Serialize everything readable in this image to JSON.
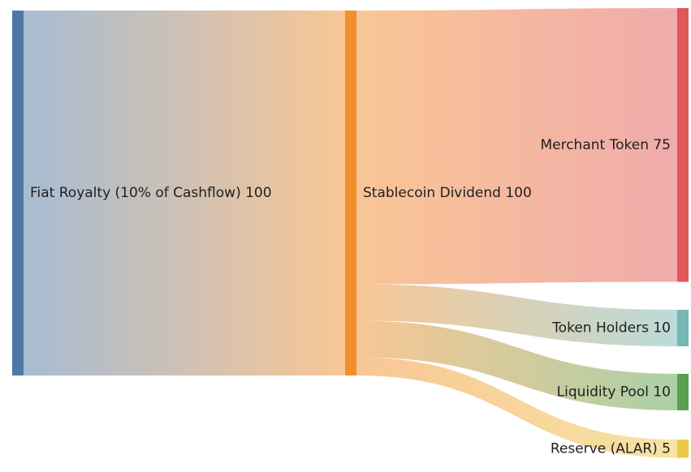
{
  "chart_data": {
    "type": "sankey",
    "nodes": [
      {
        "id": "fiat",
        "label": "Fiat Royalty (10% of Cashflow)",
        "value": 100,
        "color": "#4e79a7"
      },
      {
        "id": "stable",
        "label": "Stablecoin Dividend",
        "value": 100,
        "color": "#f28e2b"
      },
      {
        "id": "merchant",
        "label": "Merchant Token",
        "value": 75,
        "color": "#e15759"
      },
      {
        "id": "holders",
        "label": "Token Holders",
        "value": 10,
        "color": "#76b7b2"
      },
      {
        "id": "liquidity",
        "label": "Liquidity Pool",
        "value": 10,
        "color": "#59a14f"
      },
      {
        "id": "reserve",
        "label": "Reserve (ALAR)",
        "value": 5,
        "color": "#edc948"
      }
    ],
    "links": [
      {
        "source": "fiat",
        "target": "stable",
        "value": 100
      },
      {
        "source": "stable",
        "target": "merchant",
        "value": 75
      },
      {
        "source": "stable",
        "target": "holders",
        "value": 10
      },
      {
        "source": "stable",
        "target": "liquidity",
        "value": 10
      },
      {
        "source": "stable",
        "target": "reserve",
        "value": 5
      }
    ]
  }
}
